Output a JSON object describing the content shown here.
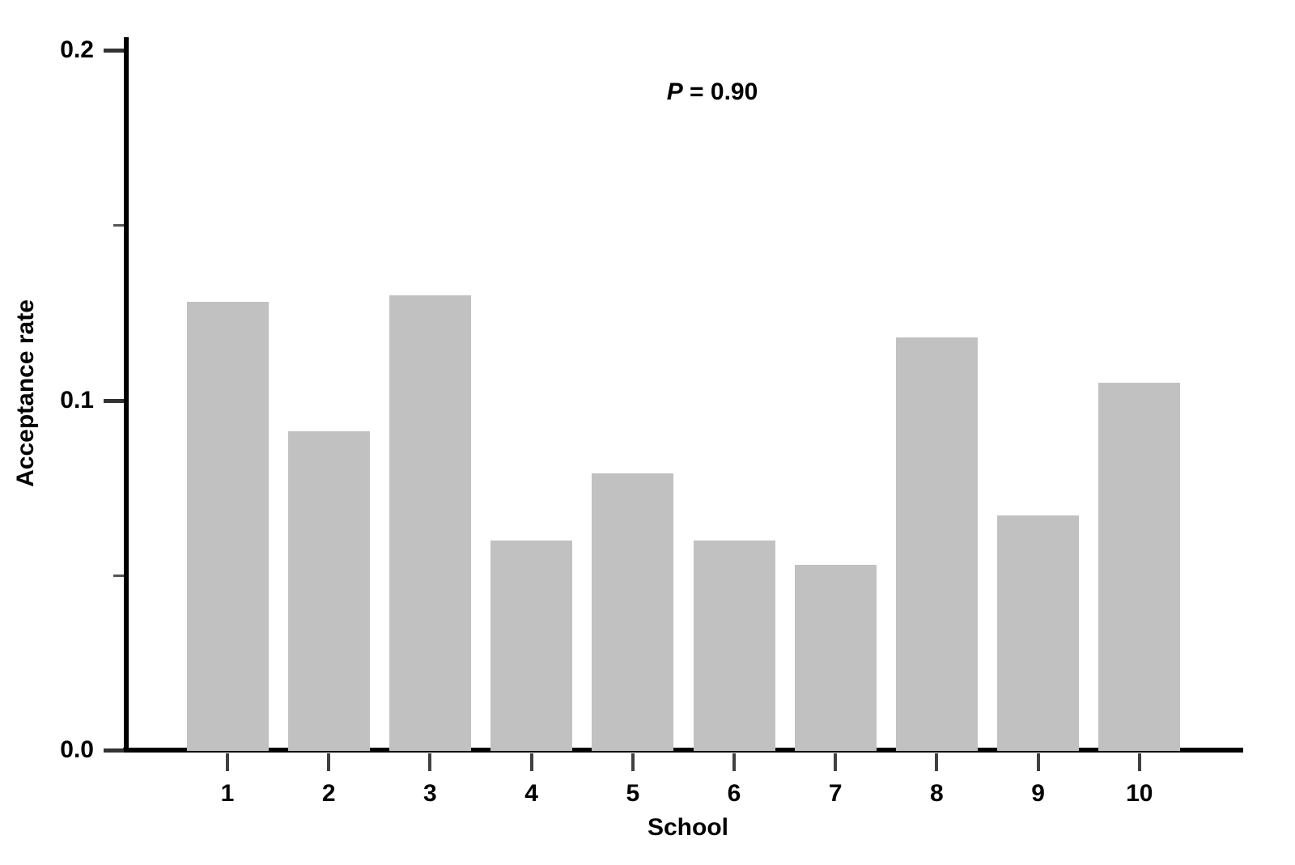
{
  "chart_data": {
    "type": "bar",
    "title": "",
    "annotation": {
      "symbol": "P",
      "rest": " = 0.90",
      "full_text": "P = 0.90"
    },
    "categories": [
      "1",
      "2",
      "3",
      "4",
      "5",
      "6",
      "7",
      "8",
      "9",
      "10"
    ],
    "values": [
      0.128,
      0.091,
      0.13,
      0.06,
      0.079,
      0.06,
      0.053,
      0.118,
      0.067,
      0.105
    ],
    "xlabel": "School",
    "ylabel": "Acceptance rate",
    "ylim": [
      0.0,
      0.2
    ],
    "y_axis": {
      "ticks_major": [
        {
          "value": 0.0,
          "label": "0.0"
        },
        {
          "value": 0.1,
          "label": "0.1"
        },
        {
          "value": 0.2,
          "label": "0.2"
        }
      ],
      "ticks_minor": [
        0.05,
        0.15
      ]
    },
    "grid": false,
    "legend": false,
    "bar_color": "#c1c1c1",
    "axis_color": "#000000",
    "text_color": "#000000"
  }
}
